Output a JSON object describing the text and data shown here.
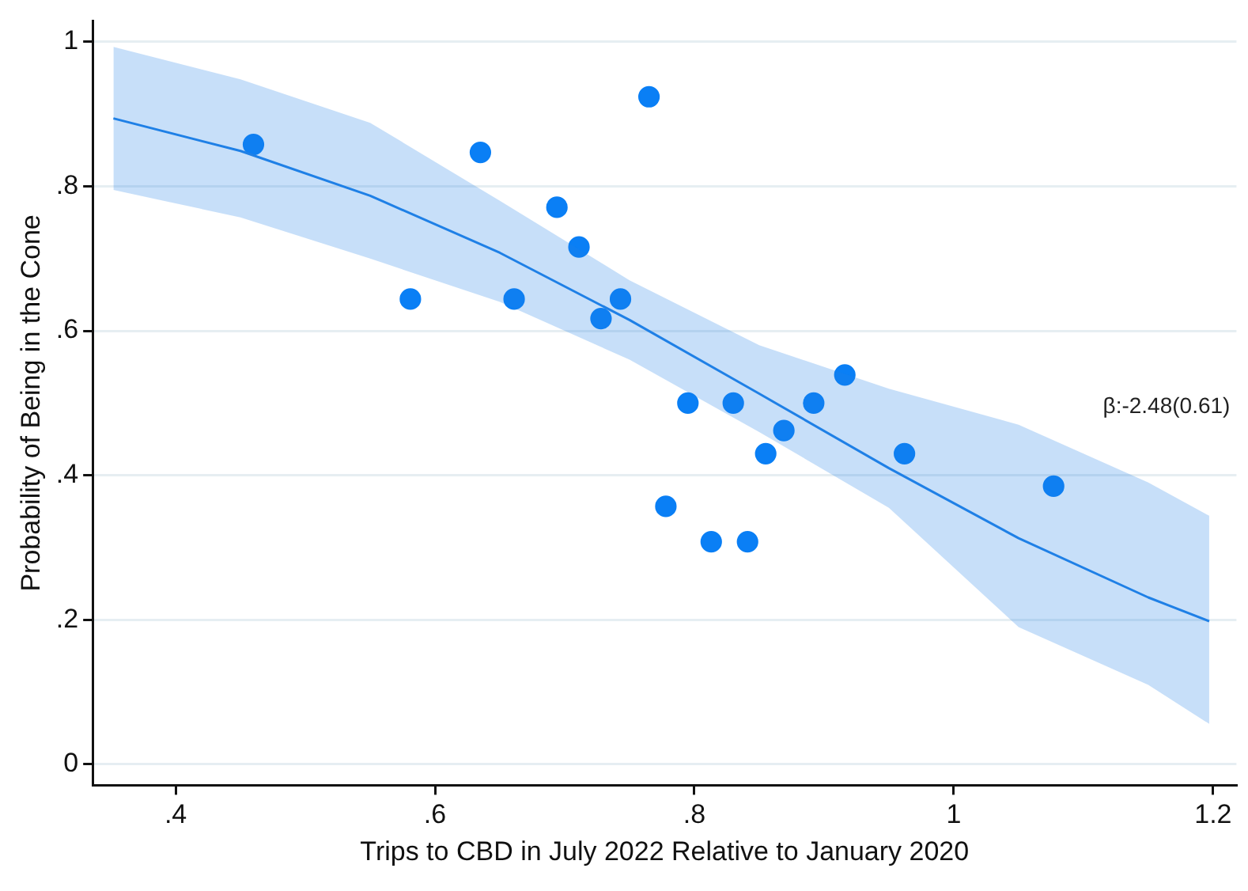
{
  "chart_data": {
    "type": "scatter",
    "xlabel": "Trips to CBD in July 2022 Relative to January 2020",
    "ylabel": "Probability of Being in the Cone",
    "annotations": [
      "β:-2.48(0.61)"
    ],
    "xlim": [
      0.336,
      1.218
    ],
    "ylim": [
      -0.029,
      1.029
    ],
    "xticks": [
      {
        "value": 0.4,
        "label": ".4"
      },
      {
        "value": 0.6,
        "label": ".6"
      },
      {
        "value": 0.8,
        "label": ".8"
      },
      1,
      1.2
    ],
    "yticks": [
      0,
      {
        "value": 0.2,
        "label": ".2"
      },
      {
        "value": 0.4,
        "label": ".4"
      },
      {
        "value": 0.6,
        "label": ".6"
      },
      {
        "value": 0.8,
        "label": ".8"
      },
      1
    ],
    "grid": "y",
    "legend": false,
    "marker": "circle",
    "series": [
      {
        "type": "line",
        "color": "#1f80e6",
        "marker": "none",
        "x": [
          0.352,
          0.45,
          0.55,
          0.65,
          0.75,
          0.85,
          0.95,
          1.05,
          1.15,
          1.197
        ],
        "values": [
          0.894,
          0.849,
          0.787,
          0.708,
          0.615,
          0.513,
          0.41,
          0.313,
          0.231,
          0.198
        ],
        "lower": [
          0.795,
          0.757,
          0.7,
          0.64,
          0.56,
          0.46,
          0.355,
          0.19,
          0.11,
          0.056
        ],
        "upper": [
          0.993,
          0.948,
          0.888,
          0.78,
          0.67,
          0.58,
          0.52,
          0.47,
          0.39,
          0.344
        ]
      },
      {
        "type": "scatter",
        "color": "#0a7ff5",
        "x": [
          0.46,
          0.581,
          0.635,
          0.661,
          0.694,
          0.711,
          0.728,
          0.743,
          0.765,
          0.795,
          0.83,
          0.869,
          0.855,
          0.892,
          0.916,
          0.962,
          1.077,
          0.778,
          0.813,
          0.841
        ],
        "values": [
          0.858,
          0.644,
          0.847,
          0.644,
          0.771,
          0.716,
          0.617,
          0.644,
          0.924,
          0.5,
          0.5,
          0.462,
          0.43,
          0.5,
          0.539,
          0.43,
          0.385,
          0.357,
          0.308,
          0.308
        ]
      }
    ]
  }
}
